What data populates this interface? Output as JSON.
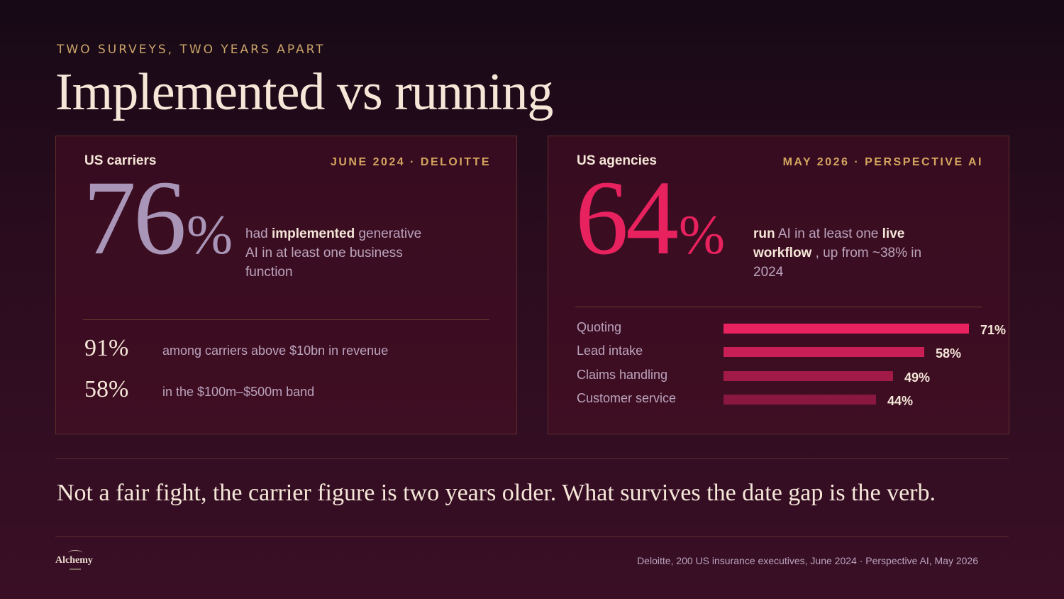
{
  "header": {
    "eyebrow": "TWO SURVEYS, TWO YEARS APART",
    "title": "Implemented vs running"
  },
  "left_card": {
    "label": "US carriers",
    "source": "JUNE 2024 · DELOITTE",
    "big_number": "76",
    "big_suffix": "%",
    "lead_pre": "had ",
    "lead_bold": "implemented",
    "lead_post": " generative AI in at least one business function",
    "stats": [
      {
        "value": "91%",
        "text": "among carriers above $10bn in revenue"
      },
      {
        "value": "58%",
        "text": "in the $100m–$500m band"
      }
    ]
  },
  "right_card": {
    "label": "US agencies",
    "source": "MAY 2026 · PERSPECTIVE AI",
    "big_number": "64",
    "big_suffix": "%",
    "lead_bold1": "run",
    "lead_mid": " AI in at least one ",
    "lead_bold2": "live workflow",
    "lead_post": " , up from ~38% in 2024",
    "bars": [
      {
        "label": "Quoting",
        "value": 71,
        "display": "71%",
        "color": "#e8215f"
      },
      {
        "label": "Lead intake",
        "value": 58,
        "display": "58%",
        "color": "#c81f56"
      },
      {
        "label": "Claims handling",
        "value": 49,
        "display": "49%",
        "color": "#a11a48"
      },
      {
        "label": "Customer service",
        "value": 44,
        "display": "44%",
        "color": "#8a173f"
      }
    ]
  },
  "conclusion": "Not a fair fight, the carrier figure is two years older. What survives the date gap is the verb.",
  "footer": {
    "logo_text": "Alchemy",
    "source_note": "Deloitte, 200 US insurance executives, June 2024 · Perspective AI, May 2026"
  },
  "colors": {
    "accent_pink": "#e8215f",
    "accent_gold": "#d4a55e",
    "muted_lavender": "#a995b7"
  }
}
